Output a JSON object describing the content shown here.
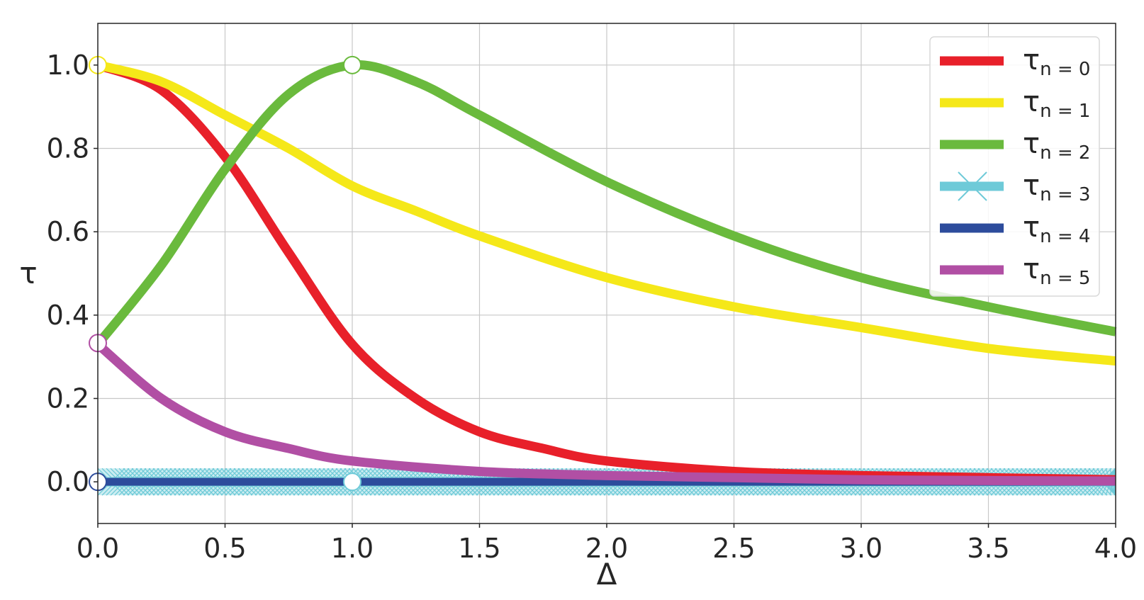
{
  "chart_data": {
    "type": "line",
    "title": "",
    "xlabel": "Δ",
    "ylabel": "τ",
    "xlim": [
      0,
      4
    ],
    "ylim": [
      -0.1,
      1.1
    ],
    "grid": true,
    "legend_position": "top-right",
    "x_ticks": [
      "0.0",
      "0.5",
      "1.0",
      "1.5",
      "2.0",
      "2.5",
      "3.0",
      "3.5",
      "4.0"
    ],
    "y_ticks": [
      "0.0",
      "0.2",
      "0.4",
      "0.6",
      "0.8",
      "1.0"
    ],
    "series": [
      {
        "name": "τn=0",
        "color": "#e8202a",
        "x": [
          0,
          0.25,
          0.5,
          0.75,
          1.0,
          1.25,
          1.5,
          1.75,
          2.0,
          2.5,
          3.0,
          3.5,
          4.0
        ],
        "y": [
          1.0,
          0.94,
          0.78,
          0.55,
          0.33,
          0.2,
          0.12,
          0.08,
          0.05,
          0.025,
          0.015,
          0.01,
          0.005
        ]
      },
      {
        "name": "τn=1",
        "color": "#f5e819",
        "x": [
          0,
          0.25,
          0.5,
          0.75,
          1.0,
          1.25,
          1.5,
          2.0,
          2.5,
          3.0,
          3.5,
          4.0
        ],
        "y": [
          1.0,
          0.96,
          0.88,
          0.8,
          0.71,
          0.65,
          0.59,
          0.49,
          0.42,
          0.37,
          0.32,
          0.29
        ]
      },
      {
        "name": "τn=2",
        "color": "#6aba3d",
        "x": [
          0,
          0.25,
          0.5,
          0.75,
          1.0,
          1.25,
          1.5,
          2.0,
          2.5,
          3.0,
          3.5,
          4.0
        ],
        "y": [
          0.33,
          0.52,
          0.75,
          0.93,
          1.0,
          0.96,
          0.88,
          0.72,
          0.59,
          0.49,
          0.42,
          0.36
        ]
      },
      {
        "name": "τn=3",
        "color": "#6ecad8",
        "x": [
          0,
          1,
          2,
          3,
          4
        ],
        "y": [
          0,
          0,
          0,
          0,
          0
        ]
      },
      {
        "name": "τn=4",
        "color": "#2d4c9c",
        "x": [
          0,
          1,
          2,
          3,
          4
        ],
        "y": [
          0,
          0,
          0,
          0,
          0
        ]
      },
      {
        "name": "τn=5",
        "color": "#b14fa4",
        "x": [
          0,
          0.25,
          0.5,
          0.75,
          1.0,
          1.5,
          2.0,
          2.5,
          3.0,
          3.5,
          4.0
        ],
        "y": [
          0.33,
          0.2,
          0.12,
          0.08,
          0.05,
          0.025,
          0.015,
          0.01,
          0.005,
          0.003,
          0.002
        ]
      }
    ],
    "markers": [
      {
        "x": 0,
        "y": 1.0,
        "color": "#f5e819"
      },
      {
        "x": 1.0,
        "y": 1.0,
        "color": "#6aba3d"
      },
      {
        "x": 0,
        "y": 0.333,
        "color": "#b14fa4"
      },
      {
        "x": 0,
        "y": 0,
        "color": "#2d4c9c"
      },
      {
        "x": 1.0,
        "y": 0,
        "color": "#6ecad8"
      }
    ],
    "legend": [
      {
        "base": "τ",
        "sub": "n = 0",
        "color": "#e8202a"
      },
      {
        "base": "τ",
        "sub": "n = 1",
        "color": "#f5e819"
      },
      {
        "base": "τ",
        "sub": "n = 2",
        "color": "#6aba3d"
      },
      {
        "base": "τ",
        "sub": "n = 3",
        "color": "#6ecad8"
      },
      {
        "base": "τ",
        "sub": "n = 4",
        "color": "#2d4c9c"
      },
      {
        "base": "τ",
        "sub": "n = 5",
        "color": "#b14fa4"
      }
    ]
  }
}
